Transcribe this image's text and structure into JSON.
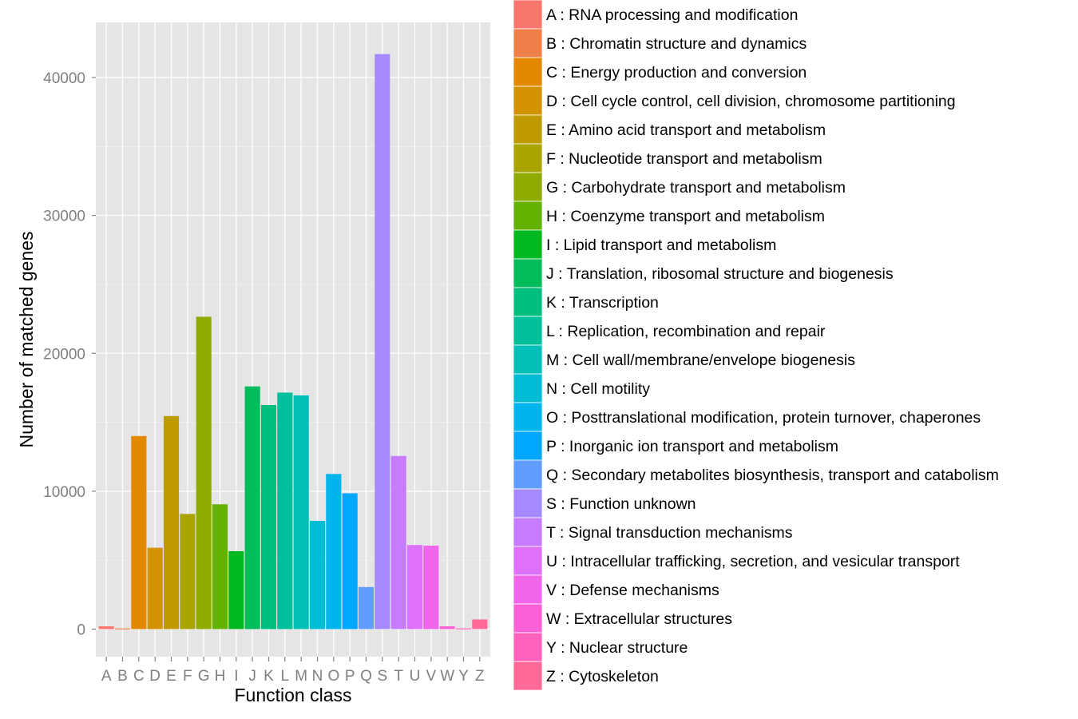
{
  "chart_data": {
    "type": "bar",
    "xlabel": "Function class",
    "ylabel": "Number of matched genes",
    "ylim": [
      -2000,
      44000
    ],
    "yticks": [
      0,
      10000,
      20000,
      30000,
      40000
    ],
    "grid": true,
    "legend_position": "right",
    "categories": [
      "A",
      "B",
      "C",
      "D",
      "E",
      "F",
      "G",
      "H",
      "I",
      "J",
      "K",
      "L",
      "M",
      "N",
      "O",
      "P",
      "Q",
      "S",
      "T",
      "U",
      "V",
      "W",
      "Y",
      "Z"
    ],
    "values": [
      200,
      50,
      14000,
      5900,
      15450,
      8350,
      22650,
      9050,
      5650,
      17600,
      16250,
      17150,
      16950,
      7850,
      11250,
      9850,
      3050,
      41700,
      12550,
      6100,
      6050,
      200,
      50,
      700
    ],
    "legend": [
      {
        "key": "A",
        "label": "A : RNA processing and modification",
        "color": "#F8766D"
      },
      {
        "key": "B",
        "label": "B : Chromatin structure and dynamics",
        "color": "#EF7F49"
      },
      {
        "key": "C",
        "label": "C : Energy production and conversion",
        "color": "#E38900"
      },
      {
        "key": "D",
        "label": "D : Cell cycle control, cell division, chromosome partitioning",
        "color": "#D39200"
      },
      {
        "key": "E",
        "label": "E : Amino acid transport and metabolism",
        "color": "#C09B00"
      },
      {
        "key": "F",
        "label": "F : Nucleotide transport and metabolism",
        "color": "#A9A400"
      },
      {
        "key": "G",
        "label": "G : Carbohydrate transport and metabolism",
        "color": "#8DAB00"
      },
      {
        "key": "H",
        "label": "H : Coenzyme transport and metabolism",
        "color": "#64B200"
      },
      {
        "key": "I",
        "label": "I : Lipid transport and metabolism",
        "color": "#00B81F"
      },
      {
        "key": "J",
        "label": "J : Translation, ribosomal structure and biogenesis",
        "color": "#00BC5A"
      },
      {
        "key": "K",
        "label": "K : Transcription",
        "color": "#00BF7D"
      },
      {
        "key": "L",
        "label": "L : Replication, recombination and repair",
        "color": "#00C09B"
      },
      {
        "key": "M",
        "label": "M : Cell wall/membrane/envelope biogenesis",
        "color": "#00C0B8"
      },
      {
        "key": "N",
        "label": "N : Cell motility",
        "color": "#00BCD4"
      },
      {
        "key": "O",
        "label": "O : Posttranslational modification, protein turnover, chaperones",
        "color": "#00B4EC"
      },
      {
        "key": "P",
        "label": "P : Inorganic ion transport and metabolism",
        "color": "#00A7FF"
      },
      {
        "key": "Q",
        "label": "Q : Secondary metabolites biosynthesis, transport and catabolism",
        "color": "#619CFF"
      },
      {
        "key": "S",
        "label": "S : Function unknown",
        "color": "#A58AFF"
      },
      {
        "key": "T",
        "label": "T : Signal transduction mechanisms",
        "color": "#C77CFF"
      },
      {
        "key": "U",
        "label": "U : Intracellular trafficking, secretion, and vesicular transport",
        "color": "#DF70F8"
      },
      {
        "key": "V",
        "label": "V : Defense mechanisms",
        "color": "#F066EA"
      },
      {
        "key": "W",
        "label": "W : Extracellular structures",
        "color": "#FB61D7"
      },
      {
        "key": "Y",
        "label": "Y : Nuclear structure",
        "color": "#FF62BC"
      },
      {
        "key": "Z",
        "label": "Z : Cytoskeleton",
        "color": "#FF6A98"
      }
    ]
  }
}
